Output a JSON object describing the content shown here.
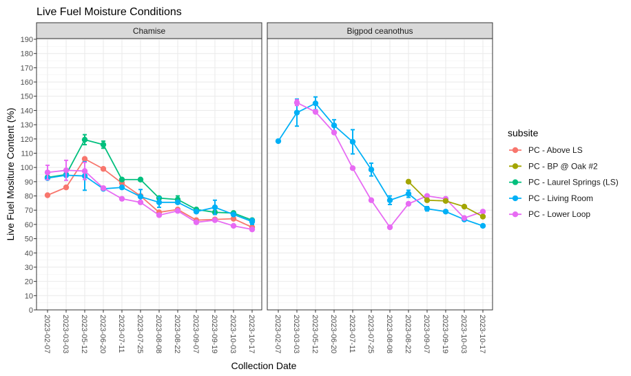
{
  "chart_data": {
    "type": "line",
    "title": "Live Fuel Moisture Conditions",
    "xlabel": "Collection Date",
    "ylabel": "Live Fuel Mositure Content (%)",
    "ylim": [
      0,
      190
    ],
    "yticks": [
      0,
      10,
      20,
      30,
      40,
      50,
      60,
      70,
      80,
      90,
      100,
      110,
      120,
      130,
      140,
      150,
      160,
      170,
      180,
      190
    ],
    "grid": true,
    "legend_position": "right",
    "legend_title": "subsite",
    "categories": [
      "2023-02-07",
      "2023-03-03",
      "2023-05-12",
      "2023-06-20",
      "2023-07-11",
      "2023-07-25",
      "2023-08-08",
      "2023-08-22",
      "2023-09-07",
      "2023-09-19",
      "2023-10-03",
      "2023-10-17"
    ],
    "legend": [
      {
        "name": "PC - Above LS",
        "color": "#F8766D"
      },
      {
        "name": "PC - BP @ Oak #2",
        "color": "#A3A500"
      },
      {
        "name": "PC - Laurel Springs (LS)",
        "color": "#00BF7D"
      },
      {
        "name": "PC - Living Room",
        "color": "#00B0F6"
      },
      {
        "name": "PC - Lower Loop",
        "color": "#E76BF3"
      }
    ],
    "panels": [
      {
        "label": "Chamise",
        "series": [
          {
            "name": "PC - Above LS",
            "color": "#F8766D",
            "values": [
              80.5,
              86,
              106,
              99,
              89,
              80,
              68.5,
              70.5,
              63,
              63.5,
              64,
              58
            ],
            "err": [
              0,
              0,
              0,
              0,
              0,
              0,
              0,
              0,
              0,
              0,
              0,
              0
            ]
          },
          {
            "name": "PC - Laurel Springs (LS)",
            "color": "#00BF7D",
            "values": [
              93,
              95,
              119.5,
              116,
              91.5,
              91.5,
              78.5,
              77.5,
              70.5,
              68.5,
              68,
              63
            ],
            "err": [
              0,
              0,
              3.5,
              2.5,
              0,
              0,
              0,
              2.5,
              0,
              0,
              0,
              0
            ]
          },
          {
            "name": "PC - Living Room",
            "color": "#00B0F6",
            "values": [
              92.5,
              94.5,
              94,
              85,
              86,
              79.5,
              75.5,
              75.5,
              69,
              72,
              67,
              62
            ],
            "err": [
              0,
              0,
              10,
              0,
              0,
              5,
              3.5,
              0,
              0,
              5,
              0,
              2
            ]
          },
          {
            "name": "PC - Lower Loop",
            "color": "#E76BF3",
            "values": [
              96.5,
              98,
              97.5,
              85.5,
              78,
              75.5,
              66.5,
              69.5,
              61.5,
              63,
              59,
              56.5
            ],
            "err": [
              5,
              7,
              6,
              0,
              0,
              0,
              0,
              0,
              0,
              0,
              0,
              0
            ]
          }
        ]
      },
      {
        "label": "Bigpod ceanothus",
        "series": [
          {
            "name": "PC - Living Room",
            "color": "#00B0F6",
            "values": [
              118.5,
              138.5,
              145,
              129.5,
              118,
              98.5,
              77,
              81.5,
              71,
              69,
              63.5,
              59
            ],
            "err": [
              0,
              9.5,
              4.5,
              4,
              8.5,
              4.5,
              3,
              2.5,
              1.5,
              0,
              0,
              0
            ]
          },
          {
            "name": "PC - Lower Loop",
            "color": "#E76BF3",
            "values": [
              null,
              145.5,
              139,
              124.5,
              99.5,
              77,
              58,
              74.5,
              80,
              78,
              64.5,
              69
            ],
            "err": [
              0,
              2,
              0,
              0,
              0,
              0,
              0,
              0,
              0,
              0,
              0,
              0
            ]
          },
          {
            "name": "PC - BP @ Oak #2",
            "color": "#A3A500",
            "values": [
              null,
              null,
              null,
              null,
              null,
              null,
              null,
              90,
              77,
              76.5,
              72.5,
              65.5
            ],
            "err": [
              0,
              0,
              0,
              0,
              0,
              0,
              0,
              0,
              0,
              0,
              0,
              0
            ]
          }
        ]
      }
    ]
  }
}
